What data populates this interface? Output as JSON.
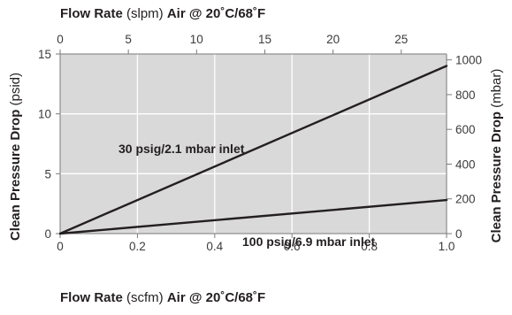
{
  "chart_data": {
    "type": "line",
    "colors": {
      "plot_background": "#d9d9d9",
      "grid": "#ffffff",
      "line": "#231f20",
      "axis": "#231f20"
    },
    "grid": true,
    "axes": {
      "bottom": {
        "title_bold_1": "Flow Rate",
        "title_normal": " (scfm) ",
        "title_bold_2": "Air @ 20˚C/68˚F",
        "range": [
          0,
          1.0
        ],
        "ticks": [
          0,
          0.2,
          0.4,
          0.6,
          0.8,
          1.0
        ],
        "tick_labels": [
          "0",
          "0.2",
          "0.4",
          "0.6",
          "0.8",
          "1.0"
        ]
      },
      "top": {
        "title_bold_1": "Flow Rate",
        "title_normal": " (slpm) ",
        "title_bold_2": "Air @ 20˚C/68˚F",
        "range": [
          0,
          28.32
        ],
        "ticks": [
          0,
          5,
          10,
          15,
          20,
          25
        ],
        "tick_labels": [
          "0",
          "5",
          "10",
          "15",
          "20",
          "25"
        ]
      },
      "left": {
        "title_bold": "Clean Pressure Drop",
        "title_normal": " (psid)",
        "range": [
          0,
          15
        ],
        "ticks": [
          0,
          5,
          10,
          15
        ],
        "tick_labels": [
          "0",
          "5",
          "10",
          "15"
        ]
      },
      "right": {
        "title_bold": "Clean Pressure Drop",
        "title_normal": " (mbar)",
        "range": [
          0,
          1034
        ],
        "ticks": [
          0,
          200,
          400,
          600,
          800,
          1000
        ],
        "tick_labels": [
          "0",
          "200",
          "400",
          "600",
          "800",
          "1000"
        ]
      }
    },
    "series": [
      {
        "name": "30 psig/2.1 mbar inlet",
        "x": [
          0,
          1.0
        ],
        "y": [
          0,
          14
        ]
      },
      {
        "name": "100 psig/6.9 mbar inlet",
        "x": [
          0,
          1.0
        ],
        "y": [
          0,
          2.8
        ]
      }
    ]
  }
}
